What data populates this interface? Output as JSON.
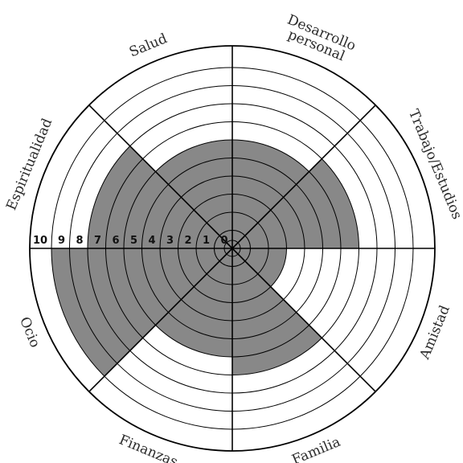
{
  "chart_data": {
    "type": "polar-area",
    "title": "",
    "categories": [
      "Desarrollo personal",
      "Trabajo/Estudios",
      "Amistad",
      "Familia",
      "Finanzas",
      "Ocio",
      "Espiritualidad",
      "Salud"
    ],
    "values": [
      6,
      7,
      3,
      7,
      6,
      10,
      8,
      6
    ],
    "scale_min": 0,
    "scale_max": 10,
    "tick_labels": [
      "10",
      "9",
      "8",
      "7",
      "6",
      "5",
      "4",
      "3",
      "2",
      "1",
      "0"
    ],
    "fill_color": "#888888",
    "line_color": "#000000",
    "grid": true
  }
}
